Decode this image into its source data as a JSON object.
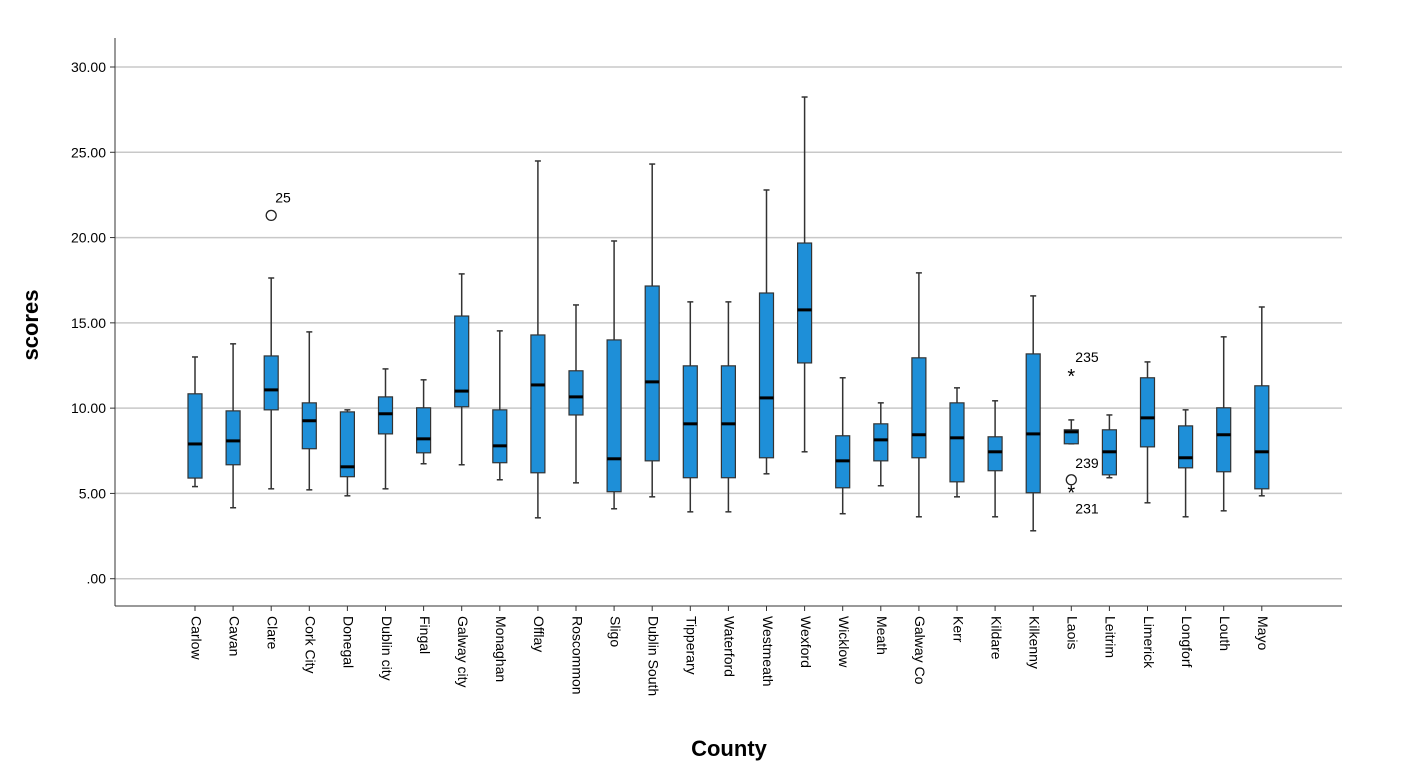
{
  "chart_data": {
    "type": "boxplot",
    "x_label": "County",
    "y_label": "scores",
    "color": "#1e8fd8",
    "grid": true,
    "ylim": [
      -1.6,
      31.7
    ],
    "yticks": [
      {
        "value": 0,
        "label": ".00"
      },
      {
        "value": 5,
        "label": "5.00"
      },
      {
        "value": 10,
        "label": "10.00"
      },
      {
        "value": 15,
        "label": "15.00"
      },
      {
        "value": 20,
        "label": "20.00"
      },
      {
        "value": 25,
        "label": "25.00"
      },
      {
        "value": 30,
        "label": "30.00"
      }
    ],
    "categories": [
      "Carlow",
      "Cavan",
      "Clare",
      "Cork City",
      "Donegal",
      "Dublin city",
      "Fingal",
      "Galway city",
      "Monaghan",
      "Offlay",
      "Roscommon",
      "Sligo",
      "Dublin South",
      "Tipperary",
      "Waterford",
      "Westmeath",
      "Wexford",
      "Wicklow",
      "Meath",
      "Galway Co",
      "Kerr",
      "Kildare",
      "Kilkenny",
      "Laois",
      "Leitrim",
      "Limerick",
      "Longforf",
      "Louth",
      "Mayo"
    ],
    "boxes": [
      {
        "min": 5.4,
        "q1": 5.9,
        "median": 7.9,
        "q3": 10.84,
        "max": 13.0
      },
      {
        "min": 4.16,
        "q1": 6.68,
        "median": 8.08,
        "q3": 9.84,
        "max": 13.77
      },
      {
        "min": 5.27,
        "q1": 9.9,
        "median": 11.07,
        "q3": 13.06,
        "max": 17.63
      },
      {
        "min": 5.21,
        "q1": 7.62,
        "median": 9.26,
        "q3": 10.31,
        "max": 14.47
      },
      {
        "min": 4.86,
        "q1": 5.98,
        "median": 6.56,
        "q3": 9.78,
        "max": 9.9
      },
      {
        "min": 5.27,
        "q1": 8.49,
        "median": 9.67,
        "q3": 10.66,
        "max": 12.3
      },
      {
        "min": 6.74,
        "q1": 7.38,
        "median": 8.2,
        "q3": 10.02,
        "max": 11.66
      },
      {
        "min": 6.68,
        "q1": 10.08,
        "median": 11.0,
        "q3": 15.4,
        "max": 17.87
      },
      {
        "min": 5.8,
        "q1": 6.8,
        "median": 7.79,
        "q3": 9.9,
        "max": 14.53
      },
      {
        "min": 3.57,
        "q1": 6.21,
        "median": 11.36,
        "q3": 14.29,
        "max": 24.49
      },
      {
        "min": 5.62,
        "q1": 9.6,
        "median": 10.66,
        "q3": 12.19,
        "max": 16.05
      },
      {
        "min": 4.1,
        "q1": 5.1,
        "median": 7.03,
        "q3": 14.0,
        "max": 19.8
      },
      {
        "min": 4.8,
        "q1": 6.91,
        "median": 11.54,
        "q3": 17.16,
        "max": 24.31
      },
      {
        "min": 3.92,
        "q1": 5.92,
        "median": 9.08,
        "q3": 12.48,
        "max": 16.23
      },
      {
        "min": 3.92,
        "q1": 5.92,
        "median": 9.08,
        "q3": 12.48,
        "max": 16.23
      },
      {
        "min": 6.15,
        "q1": 7.09,
        "median": 10.6,
        "q3": 16.75,
        "max": 22.79
      },
      {
        "min": 7.44,
        "q1": 12.65,
        "median": 15.76,
        "q3": 19.68,
        "max": 28.24
      },
      {
        "min": 3.81,
        "q1": 5.33,
        "median": 6.91,
        "q3": 8.38,
        "max": 11.78
      },
      {
        "min": 5.45,
        "q1": 6.91,
        "median": 8.14,
        "q3": 9.08,
        "max": 10.31
      },
      {
        "min": 3.63,
        "q1": 7.09,
        "median": 8.44,
        "q3": 12.95,
        "max": 17.93
      },
      {
        "min": 4.8,
        "q1": 5.68,
        "median": 8.26,
        "q3": 10.31,
        "max": 11.19
      },
      {
        "min": 3.63,
        "q1": 6.33,
        "median": 7.44,
        "q3": 8.32,
        "max": 10.43
      },
      {
        "min": 2.81,
        "q1": 5.04,
        "median": 8.49,
        "q3": 13.18,
        "max": 16.58
      },
      {
        "min": 7.91,
        "q1": 7.91,
        "median": 8.61,
        "q3": 8.73,
        "max": 9.31
      },
      {
        "min": 5.92,
        "q1": 6.09,
        "median": 7.44,
        "q3": 8.73,
        "max": 9.6
      },
      {
        "min": 4.45,
        "q1": 7.73,
        "median": 9.43,
        "q3": 11.78,
        "max": 12.71
      },
      {
        "min": 3.63,
        "q1": 6.5,
        "median": 7.09,
        "q3": 8.96,
        "max": 9.9
      },
      {
        "min": 3.98,
        "q1": 6.27,
        "median": 8.44,
        "q3": 10.02,
        "max": 14.18
      },
      {
        "min": 4.86,
        "q1": 5.27,
        "median": 7.44,
        "q3": 11.31,
        "max": 15.93
      }
    ],
    "outliers": [
      {
        "category": "Clare",
        "value": 21.3,
        "label": "25",
        "marker": "circle"
      },
      {
        "category": "Laois",
        "value": 11.95,
        "label": "235",
        "marker": "star"
      },
      {
        "category": "Laois",
        "value": 5.8,
        "label": "239",
        "marker": "circle"
      },
      {
        "category": "Laois",
        "value": 5.1,
        "label": "231",
        "marker": "star"
      }
    ]
  }
}
